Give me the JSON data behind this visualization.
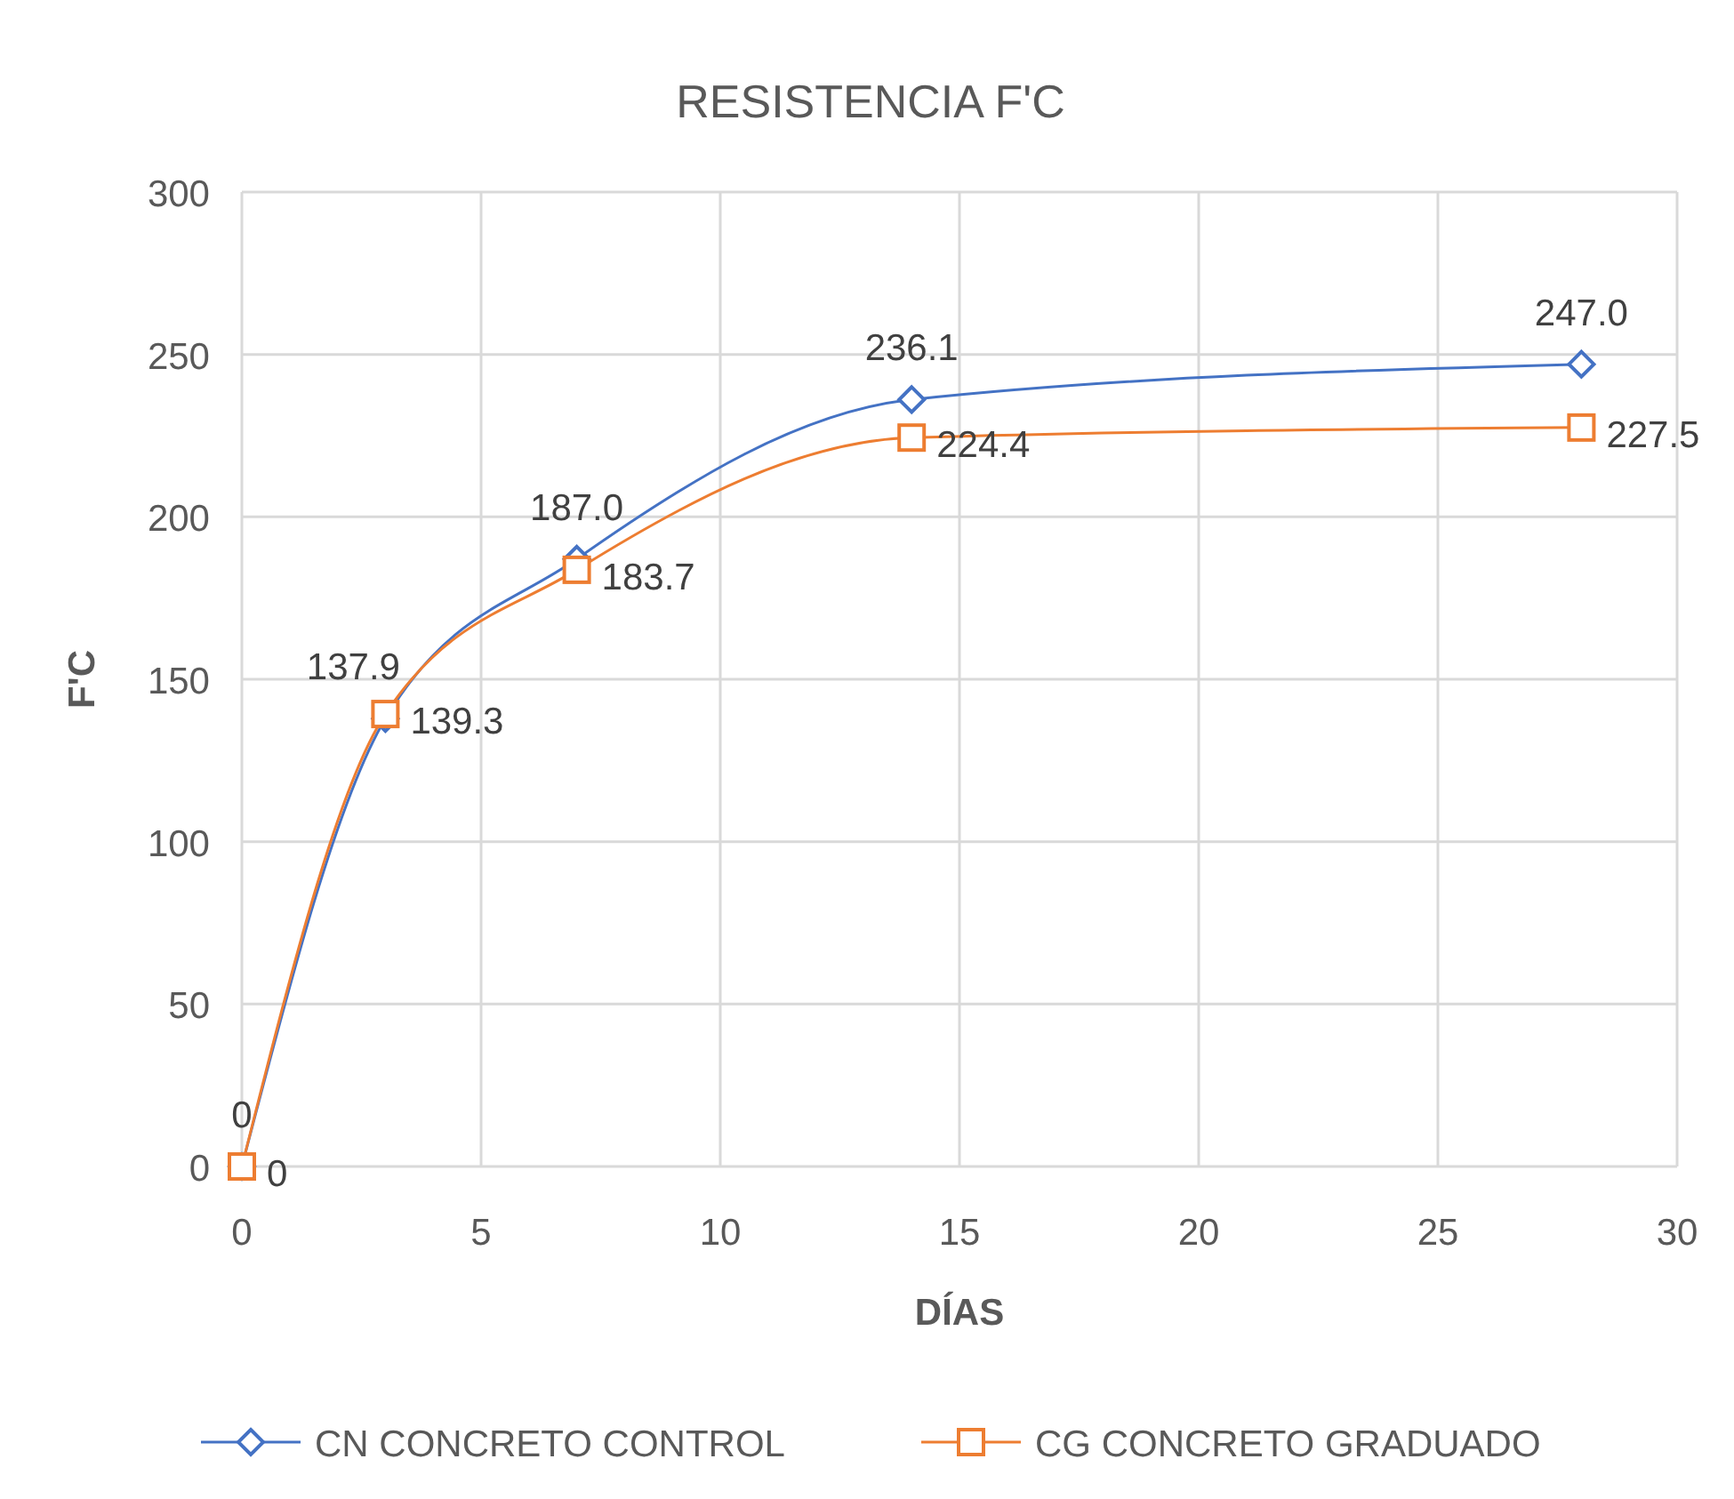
{
  "chart_data": {
    "type": "line",
    "title": "RESISTENCIA F'C",
    "xlabel": "DÍAS",
    "ylabel": "F'C",
    "xlim": [
      0,
      30
    ],
    "xticks": [
      0,
      5,
      10,
      15,
      20,
      25,
      30
    ],
    "ylim": [
      0,
      300
    ],
    "yticks": [
      0,
      50,
      100,
      150,
      200,
      250,
      300
    ],
    "grid": true,
    "legend": "bottom",
    "series": [
      {
        "name": "CN CONCRETO CONTROL",
        "color": "#4472c4",
        "marker": "diamond",
        "x": [
          0,
          3,
          7,
          14,
          28
        ],
        "values": [
          0,
          137.9,
          187.0,
          236.1,
          247.0
        ],
        "value_labels": [
          "0",
          "137.9",
          "187.0",
          "236.1",
          "247.0"
        ]
      },
      {
        "name": "CG CONCRETO GRADUADO",
        "color": "#ed7d31",
        "marker": "square",
        "x": [
          0,
          3,
          7,
          14,
          28
        ],
        "values": [
          0,
          139.3,
          183.7,
          224.4,
          227.5
        ],
        "value_labels": [
          "0",
          "139.3",
          "183.7",
          "224.4",
          "227.5"
        ]
      }
    ]
  }
}
